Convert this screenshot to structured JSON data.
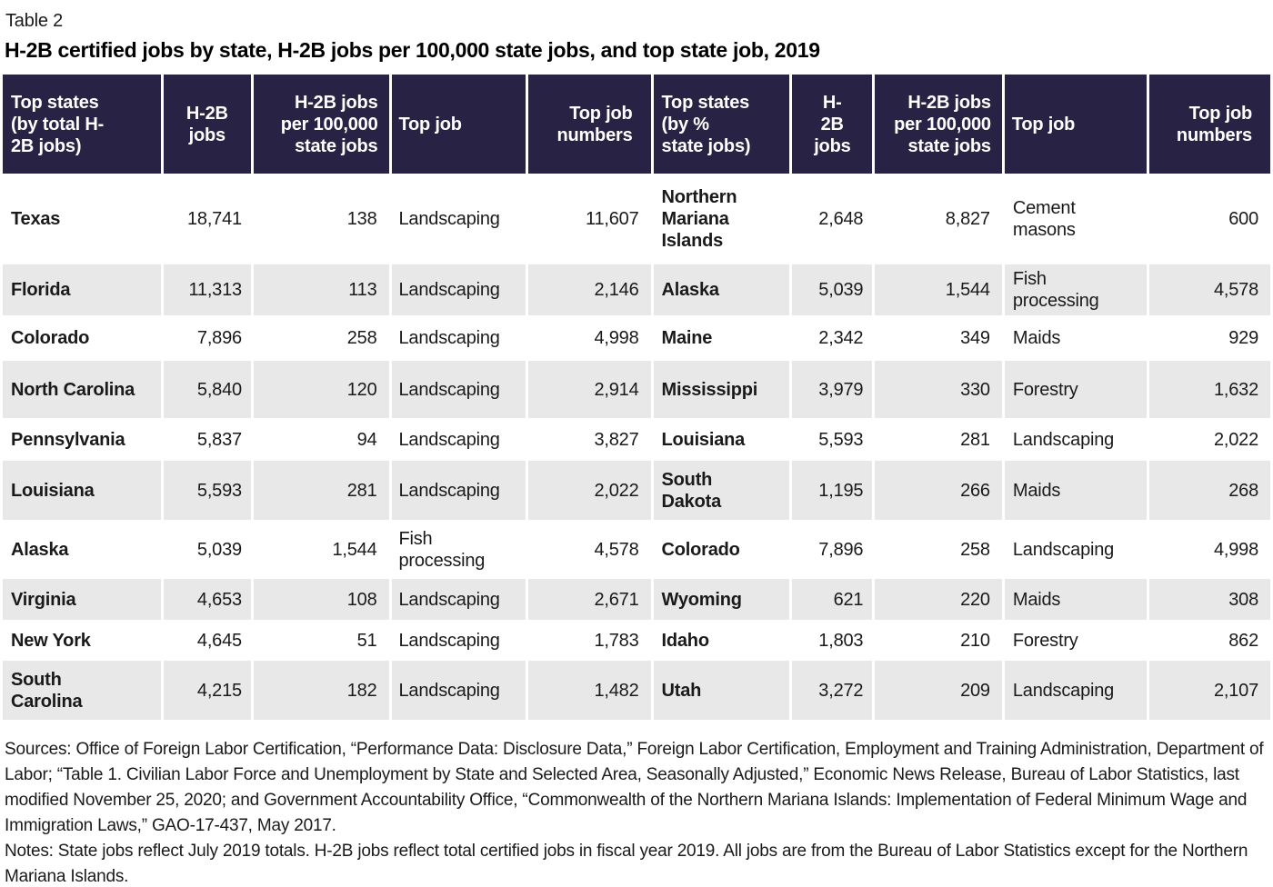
{
  "table": {
    "label": "Table 2",
    "title": "H-2B certified jobs by state, H-2B jobs per 100,000 state jobs, and top state job, 2019",
    "columns": [
      {
        "id": "state-by-total",
        "label": "Top states (by total H-2B jobs)"
      },
      {
        "id": "h2b-jobs-left",
        "label": "H-2B jobs"
      },
      {
        "id": "per-100k-left",
        "label": "H-2B jobs per 100,000 state jobs"
      },
      {
        "id": "top-job-left",
        "label": "Top job"
      },
      {
        "id": "top-job-numbers-left",
        "label": "Top job numbers"
      },
      {
        "id": "state-by-pct",
        "label": "Top states (by % state jobs)"
      },
      {
        "id": "h2b-jobs-right",
        "label": "H-2B jobs"
      },
      {
        "id": "per-100k-right",
        "label": "H-2B jobs per 100,000 state jobs"
      },
      {
        "id": "top-job-right",
        "label": "Top job"
      },
      {
        "id": "top-job-numbers-right",
        "label": "Top job numbers"
      }
    ],
    "rows": [
      [
        "Texas",
        "18,741",
        "138",
        "Landscaping",
        "11,607",
        "Northern Mariana Islands",
        "2,648",
        "8,827",
        "Cement masons",
        "600"
      ],
      [
        "Florida",
        "11,313",
        "113",
        "Landscaping",
        "2,146",
        "Alaska",
        "5,039",
        "1,544",
        "Fish processing",
        "4,578"
      ],
      [
        "Colorado",
        "7,896",
        "258",
        "Landscaping",
        "4,998",
        "Maine",
        "2,342",
        "349",
        "Maids",
        "929"
      ],
      [
        "North Carolina",
        "5,840",
        "120",
        "Landscaping",
        "2,914",
        "Mississippi",
        "3,979",
        "330",
        "Forestry",
        "1,632"
      ],
      [
        "Pennsylvania",
        "5,837",
        "94",
        "Landscaping",
        "3,827",
        "Louisiana",
        "5,593",
        "281",
        "Landscaping",
        "2,022"
      ],
      [
        "Louisiana",
        "5,593",
        "281",
        "Landscaping",
        "2,022",
        "South Dakota",
        "1,195",
        "266",
        "Maids",
        "268"
      ],
      [
        "Alaska",
        "5,039",
        "1,544",
        "Fish processing",
        "4,578",
        "Colorado",
        "7,896",
        "258",
        "Landscaping",
        "4,998"
      ],
      [
        "Virginia",
        "4,653",
        "108",
        "Landscaping",
        "2,671",
        "Wyoming",
        "621",
        "220",
        "Maids",
        "308"
      ],
      [
        "New York",
        "4,645",
        "51",
        "Landscaping",
        "1,783",
        "Idaho",
        "1,803",
        "210",
        "Forestry",
        "862"
      ],
      [
        "South Carolina",
        "4,215",
        "182",
        "Landscaping",
        "1,482",
        "Utah",
        "3,272",
        "209",
        "Landscaping",
        "2,107"
      ]
    ]
  },
  "footer": {
    "sources": "Sources: Office of Foreign Labor Certification, “Performance Data: Disclosure Data,” Foreign Labor Certification, Employment and Training Administration, Department of Labor; “Table 1. Civilian Labor Force and Unemployment by State and Selected Area, Seasonally Adjusted,” Economic News Release, Bureau of Labor Statistics, last modified November 25, 2020; and Government Accountability Office, “Commonwealth of the Northern Mariana Islands: Implementation of Federal Minimum Wage and Immigration Laws,” GAO-17-437, May 2017.",
    "notes": "Notes: State jobs reflect July 2019 totals. H-2B jobs reflect total certified jobs in fiscal year 2019. All jobs are from the Bureau of Labor Statistics except for the Northern Mariana Islands."
  },
  "colors": {
    "header_bg": "#282345",
    "header_text": "#ffffff",
    "row_alt_bg": "#e8e8e8",
    "body_text": "#1a1a1a"
  }
}
